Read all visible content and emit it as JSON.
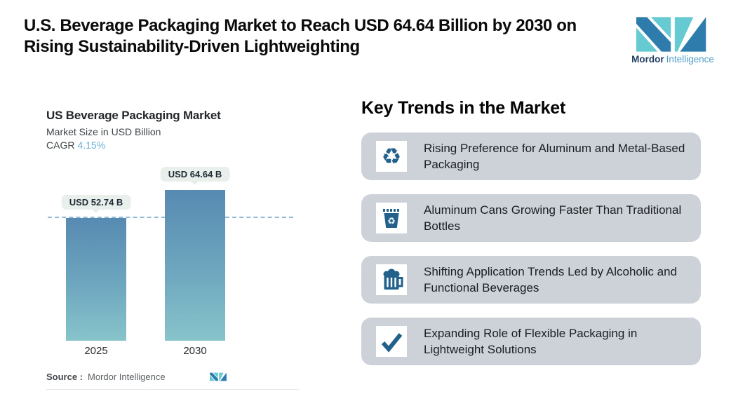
{
  "page": {
    "title": "U.S. Beverage Packaging Market to Reach USD 64.64 Billion by 2030 on Rising Sustainability-Driven Lightweighting"
  },
  "brand": {
    "name_bold": "Mordor",
    "name_light": "Intelligence",
    "colors": {
      "dark_blue": "#2e7cab",
      "teal": "#66cad2",
      "text_navy": "#1e3c5f",
      "text_blue": "#4d9fc7"
    }
  },
  "chart": {
    "title": "US Beverage Packaging Market",
    "subtitle": "Market Size in USD Billion",
    "cagr_label": "CAGR",
    "cagr_value": "4.15%",
    "source_label": "Source :",
    "source_value": "Mordor Intelligence"
  },
  "chart_data": {
    "type": "bar",
    "categories": [
      "2025",
      "2030"
    ],
    "values": [
      52.74,
      64.64
    ],
    "value_labels": [
      "USD 52.74 B",
      "USD 64.64 B"
    ],
    "title": "US Beverage Packaging Market",
    "ylabel": "Market Size in USD Billion",
    "cagr": "4.15%",
    "ylim": [
      0,
      64.64
    ],
    "grid": false,
    "legend": false,
    "dashline_at": 52.74,
    "bar_gradient_top": "#578ab1",
    "bar_gradient_bottom": "#87c4cb",
    "dash_color": "#8fb9d5"
  },
  "trends": {
    "heading": "Key Trends in the Market",
    "card_bg": "#cdd2d9",
    "icon_color": "#21618b",
    "items": [
      {
        "icon": "recycle-arrows-icon",
        "text": "Rising Preference for Aluminum and Metal-Based Packaging"
      },
      {
        "icon": "recycle-bin-icon",
        "text": "Aluminum Cans Growing Faster Than Traditional Bottles"
      },
      {
        "icon": "beer-mug-icon",
        "text": "Shifting Application Trends Led by Alcoholic and Functional Beverages"
      },
      {
        "icon": "checkmark-icon",
        "text": "Expanding Role of Flexible Packaging in Lightweight Solutions"
      }
    ]
  }
}
